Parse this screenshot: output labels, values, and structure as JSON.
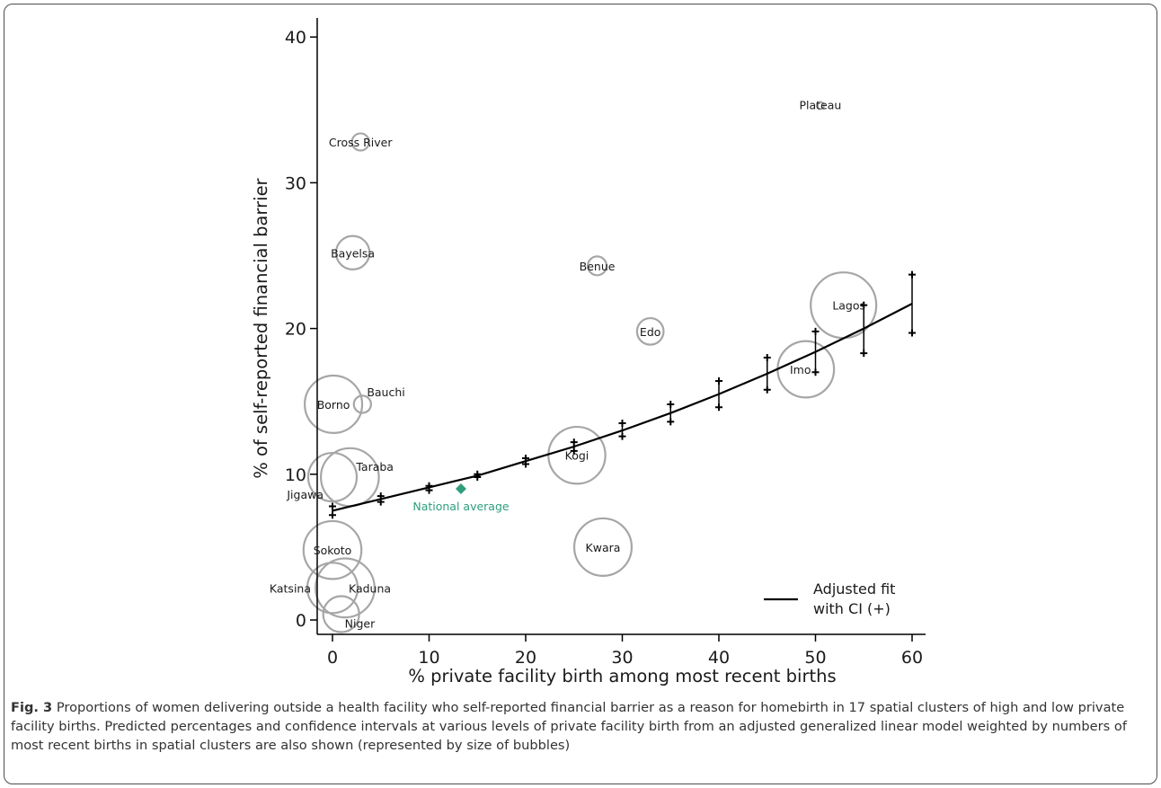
{
  "chart_data": {
    "type": "scatter",
    "xlabel": "% private facility birth among most recent births",
    "ylabel": "% of self-reported financial barrier",
    "xlim": [
      -1.5,
      61
    ],
    "ylim": [
      -1,
      41
    ],
    "x_ticks": [
      0,
      10,
      20,
      30,
      40,
      50,
      60
    ],
    "y_ticks": [
      0,
      10,
      20,
      30,
      40
    ],
    "grid": false,
    "legend_position": "bottom-right",
    "bubbles": [
      {
        "label": "Plateau",
        "x": 50.5,
        "y": 35.3,
        "size": 0.05
      },
      {
        "label": "Cross River",
        "x": 2.9,
        "y": 32.8,
        "size": 0.5
      },
      {
        "label": "Bayelsa",
        "x": 2.1,
        "y": 25.2,
        "size": 1.9
      },
      {
        "label": "Benue",
        "x": 27.4,
        "y": 24.3,
        "size": 0.6
      },
      {
        "label": "Lagos",
        "x": 52.9,
        "y": 21.6,
        "size": 7.3
      },
      {
        "label": "Edo",
        "x": 32.9,
        "y": 19.8,
        "size": 1.2
      },
      {
        "label": "Imo",
        "x": 49.0,
        "y": 17.2,
        "size": 5.4
      },
      {
        "label": "Bauchi",
        "x": 3.1,
        "y": 14.8,
        "size": 0.5
      },
      {
        "label": "Borno",
        "x": 0.1,
        "y": 14.8,
        "size": 5.6
      },
      {
        "label": "Kogi",
        "x": 25.3,
        "y": 11.3,
        "size": 5.5
      },
      {
        "label": "Taraba",
        "x": 1.8,
        "y": 9.8,
        "size": 5.7
      },
      {
        "label": "Jigawa",
        "x": 0.0,
        "y": 9.8,
        "size": 4.0
      },
      {
        "label": "Kwara",
        "x": 28.0,
        "y": 5.0,
        "size": 5.6
      },
      {
        "label": "Sokoto",
        "x": 0.0,
        "y": 4.8,
        "size": 5.7
      },
      {
        "label": "Kaduna",
        "x": 1.3,
        "y": 2.2,
        "size": 5.9
      },
      {
        "label": "Katsina",
        "x": 0.0,
        "y": 2.2,
        "size": 4.3
      },
      {
        "label": "Niger",
        "x": 0.9,
        "y": 0.4,
        "size": 2.2
      }
    ],
    "national_average": {
      "label": "National average",
      "x": 13.3,
      "y": 9.0
    },
    "fit": {
      "name": "Adjusted fit with CI (+)",
      "x": [
        0,
        5,
        10,
        15,
        20,
        25,
        30,
        35,
        40,
        45,
        50,
        55,
        60
      ],
      "y": [
        7.5,
        8.3,
        9.1,
        9.9,
        10.9,
        11.9,
        13.0,
        14.2,
        15.5,
        16.9,
        18.4,
        20.0,
        21.7
      ],
      "lower": [
        7.2,
        8.1,
        8.9,
        9.8,
        10.7,
        11.6,
        12.6,
        13.6,
        14.6,
        15.8,
        17.0,
        18.3,
        19.7
      ],
      "upper": [
        7.8,
        8.5,
        9.2,
        10.0,
        11.1,
        12.2,
        13.5,
        14.8,
        16.4,
        18.0,
        19.8,
        21.6,
        23.7
      ]
    },
    "legend": {
      "line1": "Adjusted fit",
      "line2": "with CI (+)"
    },
    "colors": {
      "bubble": "#a6a6a6",
      "fit": "#000000",
      "national_average": "#2e9e7d",
      "axis": "#000000",
      "text": "#1a1a1a"
    }
  },
  "caption": {
    "label": "Fig. 3",
    "text": "Proportions of women delivering outside a health facility who self-reported financial barrier as a reason for homebirth in 17 spatial clusters of high and low private facility births. Predicted percentages and confidence intervals at various levels of private facility birth from an adjusted generalized linear model weighted by numbers of most recent births in spatial clusters are also shown (represented by size of bubbles)"
  }
}
